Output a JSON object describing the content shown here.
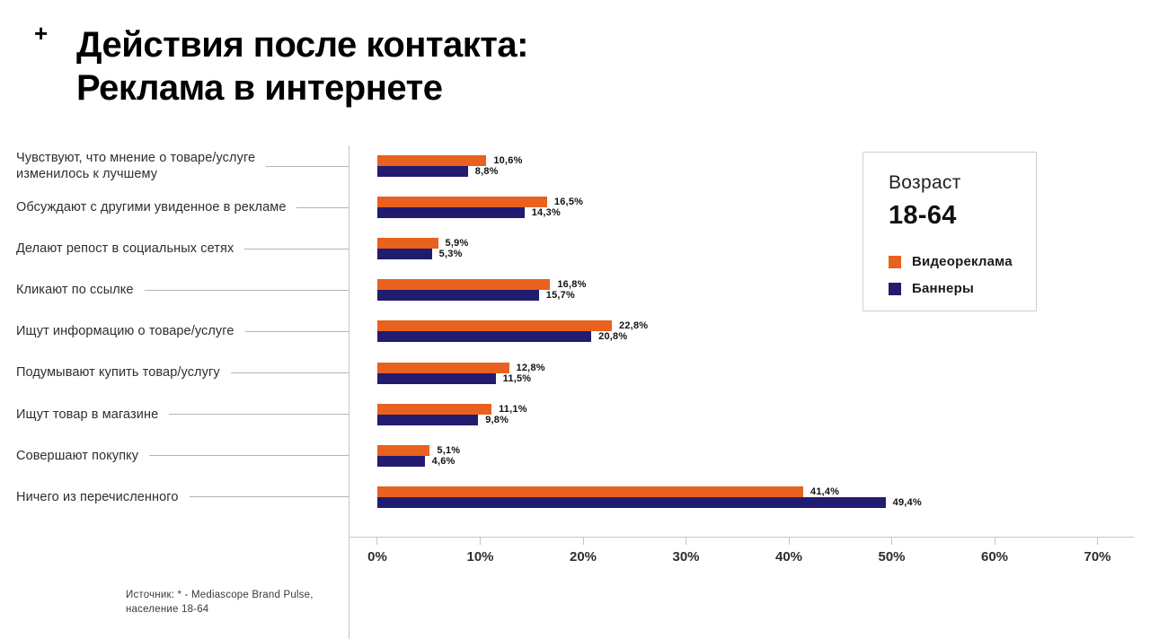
{
  "header": {
    "plus": "+",
    "title": "Действия после контакта:\nРеклама в интернете"
  },
  "chart_data": {
    "type": "bar",
    "orientation": "horizontal",
    "title": "Действия после контакта: Реклама в интернете",
    "categories": [
      "Чувствуют, что мнение о товаре/услуге\nизменилось к лучшему",
      "Обсуждают с другими увиденное в рекламе",
      "Делают репост в социальных сетях",
      "Кликают по ссылке",
      "Ищут информацию о товаре/услуге",
      "Подумывают купить товар/услугу",
      "Ищут товар в магазине",
      "Совершают покупку",
      "Ничего из перечисленного"
    ],
    "series": [
      {
        "name": "Видеореклама",
        "color": "#E8611E",
        "values": [
          10.6,
          16.5,
          5.9,
          16.8,
          22.8,
          12.8,
          11.1,
          5.1,
          41.4
        ],
        "labels": [
          "10,6%",
          "16,5%",
          "5,9%",
          "16,8%",
          "22,8%",
          "12,8%",
          "11,1%",
          "5,1%",
          "41,4%"
        ]
      },
      {
        "name": "Баннеры",
        "color": "#211C70",
        "values": [
          8.8,
          14.3,
          5.3,
          15.7,
          20.8,
          11.5,
          9.8,
          4.6,
          49.4
        ],
        "labels": [
          "8,8%",
          "14,3%",
          "5,3%",
          "15,7%",
          "20,8%",
          "11,5%",
          "9,8%",
          "4,6%",
          "49,4%"
        ]
      }
    ],
    "x_ticks": [
      "0%",
      "10%",
      "20%",
      "30%",
      "40%",
      "50%",
      "60%",
      "70%"
    ],
    "xlim": [
      0,
      70
    ],
    "grid": false,
    "legend": {
      "title": "Возраст",
      "subtitle": "18-64",
      "position": "top-right"
    }
  },
  "footer": {
    "source": "Источник: * - Mediascope Brand Pulse,\nнаселение 18-64"
  }
}
